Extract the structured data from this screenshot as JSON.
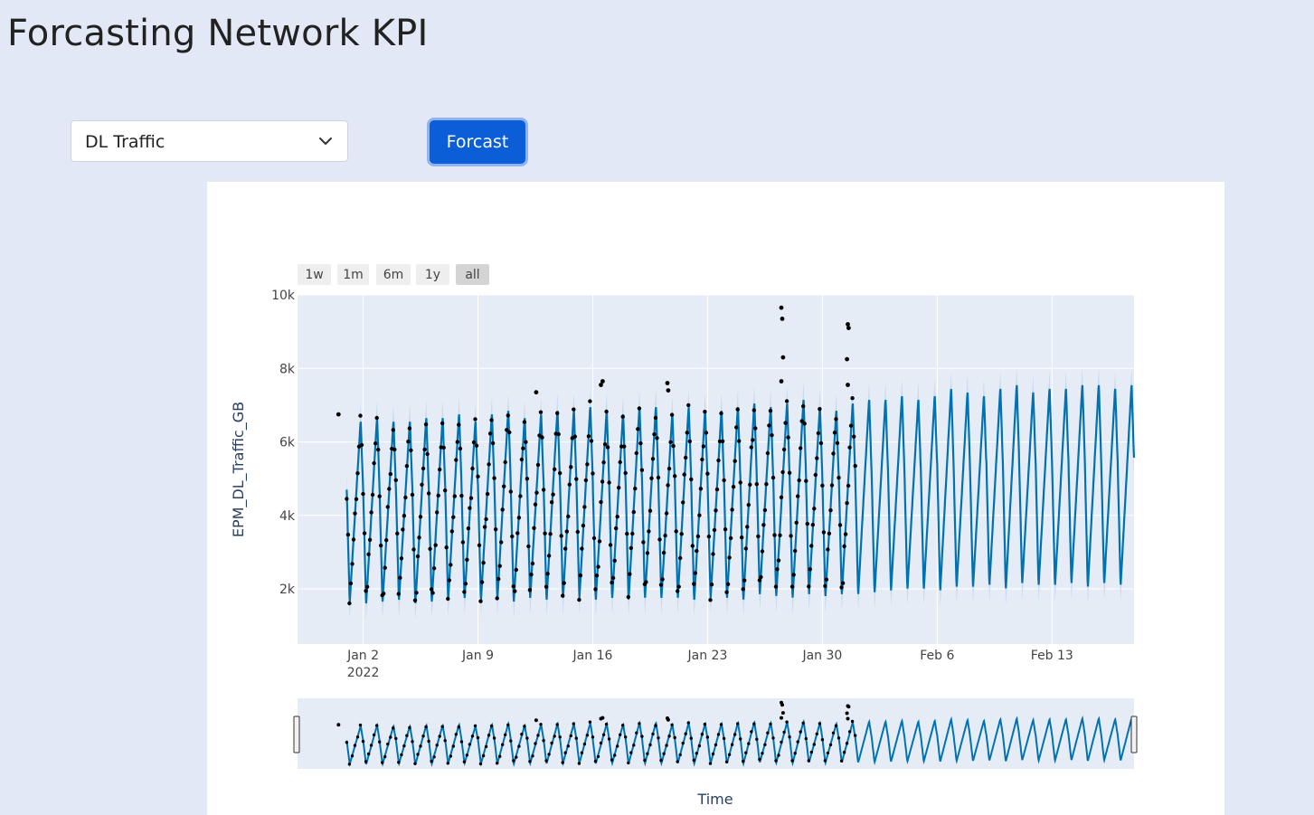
{
  "page": {
    "title": "Forcasting Network KPI"
  },
  "controls": {
    "kpi_select_value": "DL Traffic",
    "forecast_button_label": "Forcast"
  },
  "chart_data": {
    "type": "line",
    "ylabel": "EPM_DL_Traffic_GB",
    "xlabel": "Time",
    "range_selector": [
      "1w",
      "1m",
      "6m",
      "1y",
      "all"
    ],
    "range_selector_active": "all",
    "y_ticks": [
      "2k",
      "4k",
      "6k",
      "8k",
      "10k"
    ],
    "x_ticks": [
      "Jan 2",
      "Jan 9",
      "Jan 16",
      "Jan 23",
      "Jan 30",
      "Feb 6",
      "Feb 13"
    ],
    "x_tick_year": "2022",
    "ylim": [
      500,
      10000
    ],
    "xlim": [
      "2021-12-29",
      "2022-02-18"
    ],
    "grid": true,
    "range_slider": true,
    "colors": {
      "forecast": "#0072b2",
      "band": "#b9d3ea",
      "actual": "#000000",
      "plot_bg": "#e5ecf6"
    },
    "series": [
      {
        "kind": "forecast_daily_cycle",
        "start": "2022-01-01",
        "end": "2022-02-18",
        "daily_min": [
          1600,
          1550,
          1600,
          1650,
          1550,
          1600,
          1650,
          1700,
          1650,
          1650,
          1600,
          1700,
          1650,
          1700,
          1700,
          1650,
          1700,
          1650,
          1700,
          1700,
          1700,
          1650,
          1700,
          1700,
          1650,
          1800,
          1750,
          1700,
          1800,
          1750,
          1800,
          1800,
          1850,
          1900,
          1950,
          1950,
          1900,
          2000,
          2000,
          2050,
          1950,
          2100,
          2050,
          2050,
          2100,
          2000,
          2100,
          2050,
          2100
        ],
        "daily_max": [
          6600,
          6700,
          6600,
          6600,
          6700,
          6700,
          6800,
          6600,
          6800,
          6900,
          6700,
          6800,
          6900,
          6900,
          7000,
          6900,
          6800,
          7000,
          7000,
          6800,
          7000,
          6900,
          6900,
          7000,
          7100,
          7000,
          7100,
          7200,
          7000,
          6900,
          7100,
          7200,
          7200,
          7300,
          7200,
          7300,
          7500,
          7400,
          7300,
          7500,
          7600,
          7400,
          7500,
          7500,
          7600,
          7600,
          7500,
          7600,
          7700
        ],
        "band_half_width": 450
      },
      {
        "kind": "actual_hourly",
        "start": "2022-01-01",
        "end": "2022-02-01",
        "outliers": [
          {
            "date": "2021-12-31",
            "y": 6750
          },
          {
            "date": "2022-01-12",
            "y": 7350
          },
          {
            "date": "2022-01-16",
            "y": 7650
          },
          {
            "date": "2022-01-16",
            "y": 7550
          },
          {
            "date": "2022-01-20",
            "y": 7600
          },
          {
            "date": "2022-01-20",
            "y": 7400
          },
          {
            "date": "2022-01-27",
            "y": 9650
          },
          {
            "date": "2022-01-27",
            "y": 9350
          },
          {
            "date": "2022-01-27",
            "y": 8300
          },
          {
            "date": "2022-01-27",
            "y": 7650
          },
          {
            "date": "2022-01-31",
            "y": 9200
          },
          {
            "date": "2022-01-31",
            "y": 9100
          },
          {
            "date": "2022-01-31",
            "y": 8250
          },
          {
            "date": "2022-01-31",
            "y": 7550
          }
        ]
      }
    ]
  }
}
